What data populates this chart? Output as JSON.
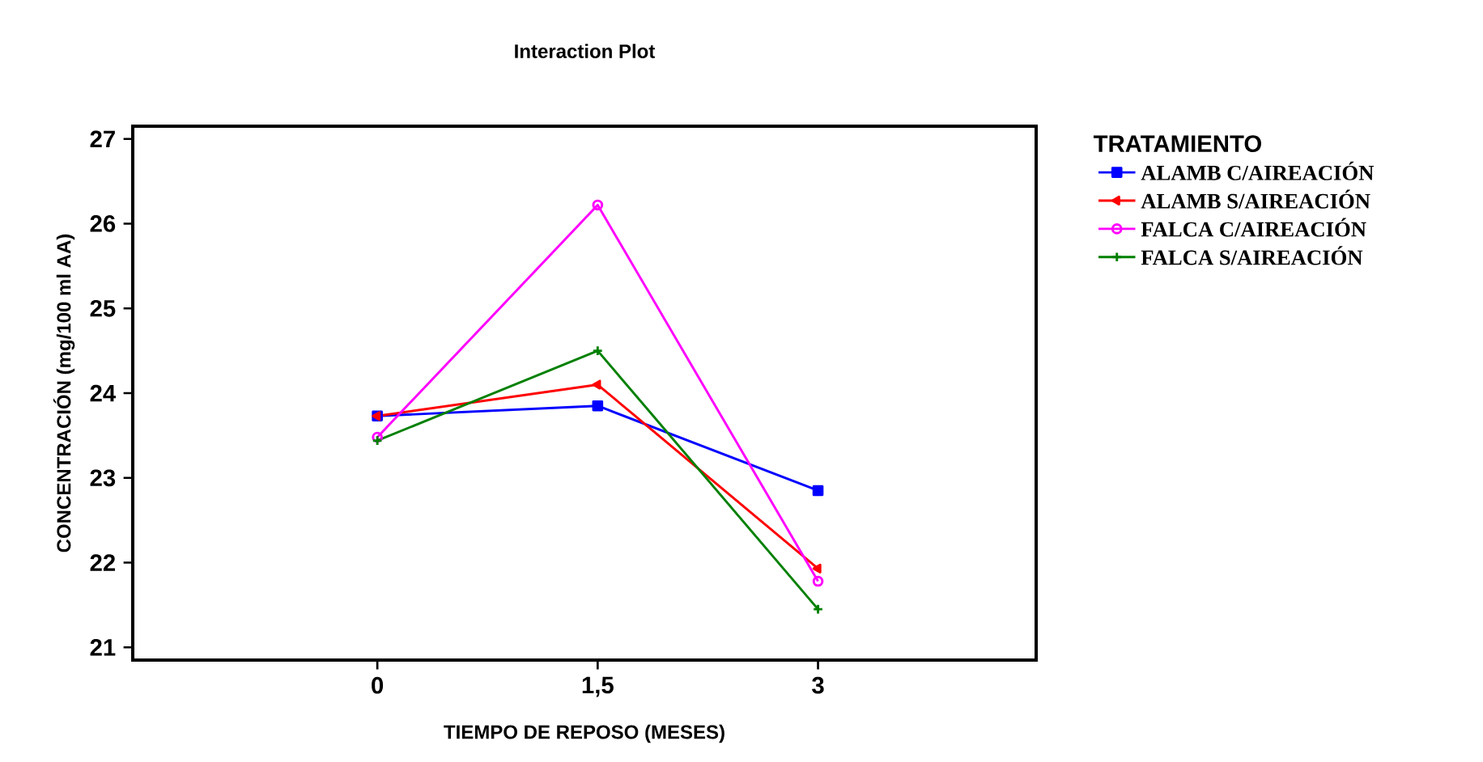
{
  "chart_data": {
    "type": "line",
    "title": "Interaction Plot",
    "xlabel": "TIEMPO DE REPOSO (MESES)",
    "ylabel": "CONCENTRACIÓN (mg/100 ml AA)",
    "legend_title": "TRATAMIENTO",
    "legend": "right",
    "categories": [
      "0",
      "1,5",
      "3"
    ],
    "ylim": [
      20.85,
      27.15
    ],
    "yticks": [
      21,
      22,
      23,
      24,
      25,
      26,
      27
    ],
    "series": [
      {
        "name": "ALAMB C/AIREACIÓN",
        "color": "#0000ff",
        "marker": "square",
        "values": [
          23.73,
          23.85,
          22.85
        ]
      },
      {
        "name": "ALAMB S/AIREACIÓN",
        "color": "#ff0000",
        "marker": "triangle",
        "values": [
          23.73,
          24.1,
          21.93
        ]
      },
      {
        "name": "FALCA C/AIREACIÓN",
        "color": "#ff00ff",
        "marker": "circle",
        "values": [
          23.48,
          26.22,
          21.78
        ]
      },
      {
        "name": "FALCA S/AIREACIÓN",
        "color": "#008000",
        "marker": "cross",
        "values": [
          23.44,
          24.5,
          21.45
        ]
      }
    ]
  }
}
